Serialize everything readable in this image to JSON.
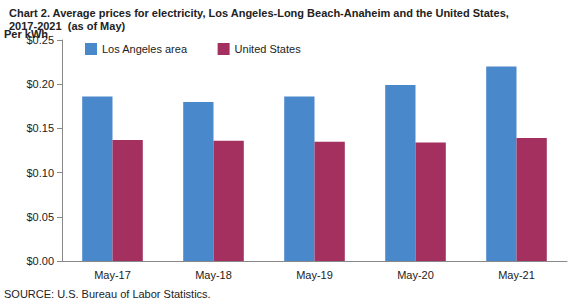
{
  "chart_data": {
    "type": "bar",
    "title": "Chart 2. Average prices for electricity, Los Angeles-Long Beach-Anaheim and the United States, 2017-2021  (as of May)",
    "y_label": "Per kWh",
    "annotations": [
      "SOURCE: U.S. Bureau of Labor Statistics."
    ],
    "categories": [
      "May-17",
      "May-18",
      "May-19",
      "May-20",
      "May-21"
    ],
    "series": [
      {
        "name": "Los Angeles area",
        "color": "#4a88cc",
        "values": [
          0.186,
          0.18,
          0.186,
          0.199,
          0.22
        ]
      },
      {
        "name": "United States",
        "color": "#a3305f",
        "values": [
          0.137,
          0.136,
          0.135,
          0.134,
          0.139
        ]
      }
    ],
    "ylim": [
      0,
      0.25
    ],
    "yticks": [
      {
        "value": 0,
        "label": "$0.00"
      },
      {
        "value": 0.05,
        "label": "$0.05"
      },
      {
        "value": 0.1,
        "label": "$0.10"
      },
      {
        "value": 0.15,
        "label": "$0.15"
      },
      {
        "value": 0.2,
        "label": "$0.20"
      },
      {
        "value": 0.25,
        "label": "$0.25"
      }
    ],
    "grid": false,
    "legend": "top-left"
  }
}
